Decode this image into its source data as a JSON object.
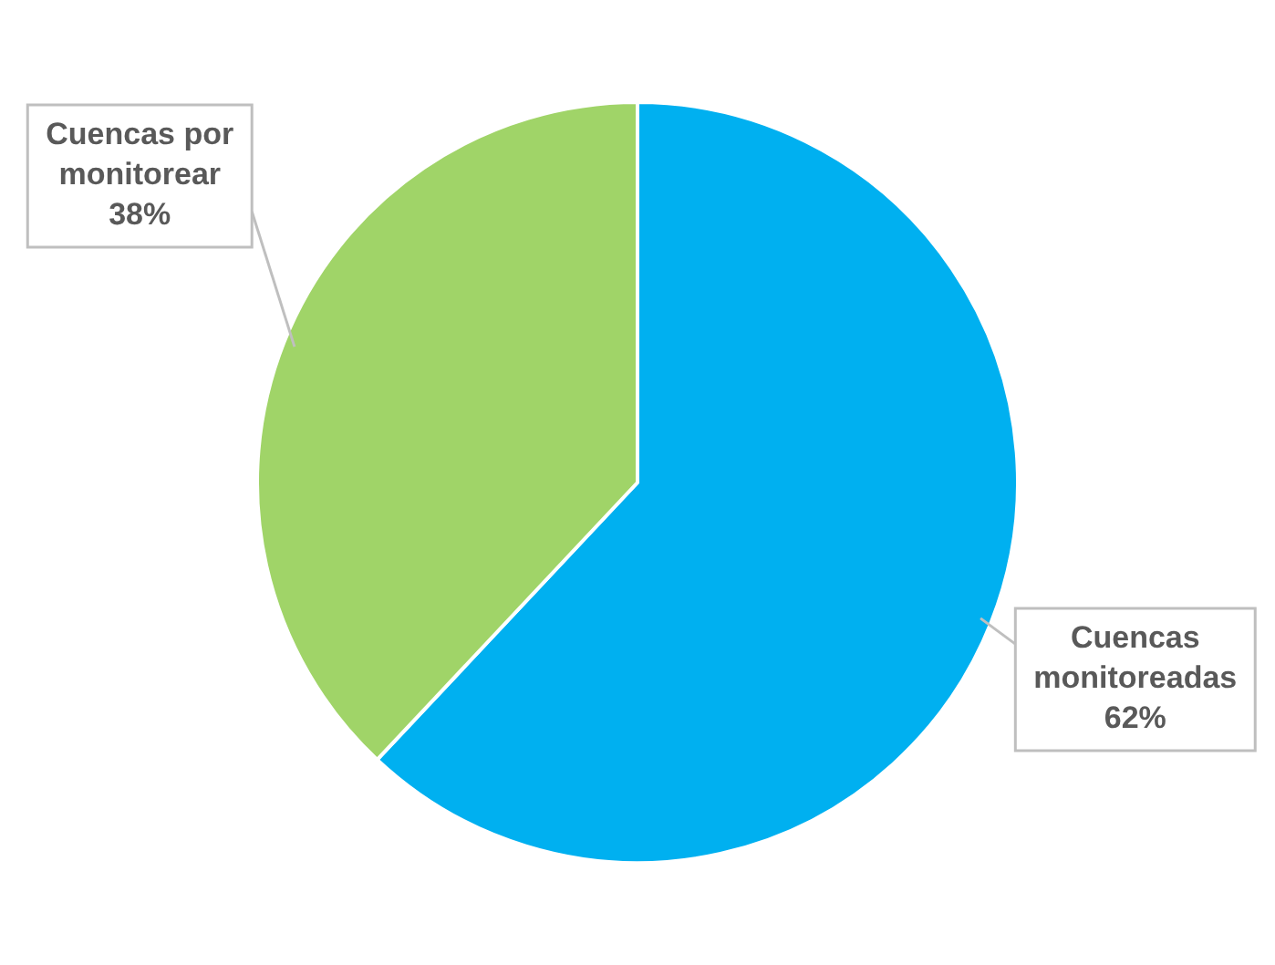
{
  "chart_data": {
    "type": "pie",
    "categories": [
      "Cuencas monitoreadas",
      "Cuencas por monitorear"
    ],
    "values": [
      62,
      38
    ],
    "colors": [
      "#00b0f0",
      "#a0d468"
    ],
    "value_labels": [
      "62%",
      "38%"
    ],
    "legend": false
  }
}
